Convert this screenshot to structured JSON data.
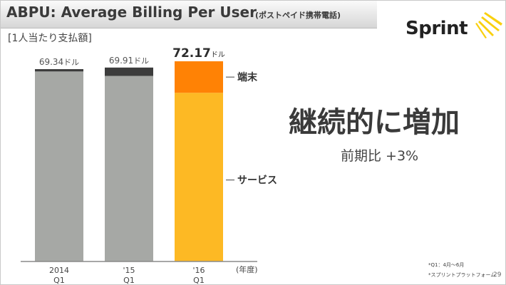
{
  "header": {
    "title": "ABPU: Average Billing Per User",
    "title_sub": "(ポストペイド携帯電話)",
    "unit": "[1人当たり支払額]"
  },
  "logo": {
    "text": "Sprint"
  },
  "headline": "継続的に増加",
  "yoy": "前期比 +3%",
  "footnotes": [
    "*Q1：4月〜6月",
    "*スプリントプラットフォーム"
  ],
  "page_number": "29",
  "colors": {
    "service_gray": "#a6a8a5",
    "device_dark": "#3c3c3c",
    "service_highlight": "#fdb924",
    "device_highlight": "#ff8205"
  },
  "chart_data": {
    "type": "bar",
    "stacked": true,
    "categories": [
      {
        "year": "2014",
        "quarter": "Q1"
      },
      {
        "year": "'15",
        "quarter": "Q1"
      },
      {
        "year": "'16",
        "quarter": "Q1"
      }
    ],
    "x_unit_label": "(年度)",
    "totals": [
      69.34,
      69.91,
      72.17
    ],
    "total_labels": [
      {
        "value": "69.34",
        "unit": "ドル"
      },
      {
        "value": "69.91",
        "unit": "ドル"
      },
      {
        "value": "72.17",
        "unit": "ドル"
      }
    ],
    "series": [
      {
        "name": "サービス",
        "values": [
          68.5,
          66.9,
          60.8
        ]
      },
      {
        "name": "端末",
        "values": [
          0.84,
          3.01,
          11.37
        ]
      }
    ],
    "ylim": [
      0,
      75
    ],
    "grid": false,
    "legend": "right-inline"
  }
}
